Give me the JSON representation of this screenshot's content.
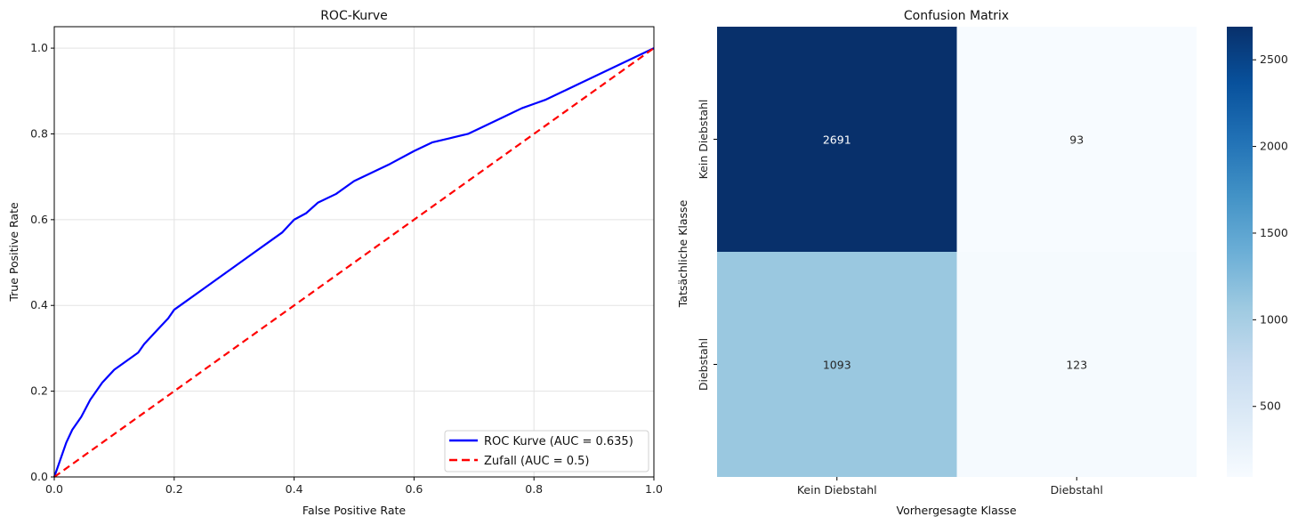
{
  "chart_data": [
    {
      "type": "line",
      "title": "ROC-Kurve",
      "xlabel": "False Positive Rate",
      "ylabel": "True Positive Rate",
      "xlim": [
        0.0,
        1.0
      ],
      "ylim": [
        0.0,
        1.05
      ],
      "grid": true,
      "xticks": [
        "0.0",
        "0.2",
        "0.4",
        "0.6",
        "0.8",
        "1.0"
      ],
      "yticks": [
        "0.0",
        "0.2",
        "0.4",
        "0.6",
        "0.8",
        "1.0"
      ],
      "legend_position": "bottom-right",
      "series": [
        {
          "name": "ROC Kurve (AUC = 0.635)",
          "color": "#0000ff",
          "style": "solid",
          "x": [
            0.0,
            0.01,
            0.02,
            0.03,
            0.045,
            0.06,
            0.07,
            0.08,
            0.1,
            0.12,
            0.14,
            0.15,
            0.17,
            0.19,
            0.2,
            0.22,
            0.25,
            0.28,
            0.3,
            0.33,
            0.36,
            0.38,
            0.4,
            0.42,
            0.44,
            0.47,
            0.5,
            0.53,
            0.56,
            0.6,
            0.63,
            0.66,
            0.69,
            0.72,
            0.75,
            0.78,
            0.8,
            0.82,
            0.85,
            0.88,
            0.91,
            0.94,
            0.97,
            1.0
          ],
          "y": [
            0.0,
            0.04,
            0.08,
            0.11,
            0.14,
            0.18,
            0.2,
            0.22,
            0.25,
            0.27,
            0.29,
            0.31,
            0.34,
            0.37,
            0.39,
            0.41,
            0.44,
            0.47,
            0.49,
            0.52,
            0.55,
            0.57,
            0.6,
            0.615,
            0.64,
            0.66,
            0.69,
            0.71,
            0.73,
            0.76,
            0.78,
            0.79,
            0.8,
            0.82,
            0.84,
            0.86,
            0.87,
            0.88,
            0.9,
            0.92,
            0.94,
            0.96,
            0.98,
            1.0
          ]
        },
        {
          "name": "Zufall (AUC = 0.5)",
          "color": "#ff0000",
          "style": "dashed",
          "x": [
            0.0,
            1.0
          ],
          "y": [
            0.0,
            1.0
          ]
        }
      ]
    },
    {
      "type": "heatmap",
      "title": "Confusion Matrix",
      "xlabel": "Vorhergesagte Klasse",
      "ylabel": "Tatsächliche Klasse",
      "x_categories": [
        "Kein Diebstahl",
        "Diebstahl"
      ],
      "y_categories": [
        "Kein Diebstahl",
        "Diebstahl"
      ],
      "values": [
        [
          2691,
          93
        ],
        [
          1093,
          123
        ]
      ],
      "colormap": "Blues",
      "colorbar_range": [
        93,
        2691
      ],
      "colorbar_ticks": [
        "500",
        "1000",
        "1500",
        "2000",
        "2500"
      ]
    }
  ]
}
